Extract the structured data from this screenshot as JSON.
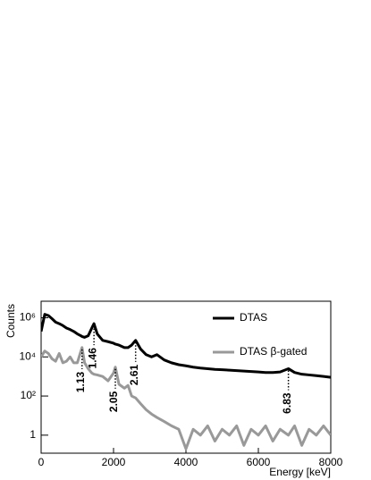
{
  "chart_data": {
    "type": "line",
    "xlabel": "Energy [keV]",
    "ylabel": "Counts",
    "x": [
      0,
      100,
      200,
      300,
      400,
      500,
      600,
      700,
      800,
      900,
      1000,
      1100,
      1130,
      1200,
      1300,
      1400,
      1460,
      1550,
      1700,
      1850,
      2000,
      2050,
      2150,
      2300,
      2400,
      2500,
      2610,
      2750,
      2900,
      3050,
      3200,
      3400,
      3600,
      3800,
      4000,
      4200,
      4400,
      4600,
      4800,
      5000,
      5200,
      5400,
      5600,
      5800,
      6000,
      6200,
      6400,
      6600,
      6830,
      7000,
      7200,
      7400,
      7600,
      7800,
      8000
    ],
    "series": [
      {
        "name": "DTAS",
        "color": "#000000",
        "values": [
          200000,
          1500000,
          1300000,
          900000,
          600000,
          500000,
          400000,
          300000,
          250000,
          200000,
          150000,
          120000,
          110000,
          100000,
          120000,
          300000,
          500000,
          150000,
          70000,
          60000,
          50000,
          45000,
          40000,
          30000,
          30000,
          40000,
          70000,
          25000,
          13000,
          10000,
          13000,
          7000,
          5000,
          4000,
          3500,
          3000,
          2700,
          2500,
          2300,
          2200,
          2100,
          2000,
          1900,
          1800,
          1700,
          1600,
          1600,
          1700,
          2500,
          1600,
          1300,
          1200,
          1100,
          1000,
          900
        ]
      },
      {
        "name": "DTAS β-gated",
        "color": "#999999",
        "values": [
          10000,
          20000,
          15000,
          8000,
          6000,
          15000,
          5000,
          6000,
          10000,
          5000,
          5000,
          20000,
          30000,
          5000,
          2500,
          1500,
          1300,
          1200,
          1000,
          600,
          1500,
          3000,
          400,
          250,
          350,
          100,
          80,
          40,
          20,
          12,
          8,
          5,
          3,
          2,
          0.2,
          2,
          1,
          3,
          0.5,
          2,
          1,
          3,
          0.3,
          2,
          1,
          3,
          0.5,
          2,
          1,
          3,
          0.3,
          2,
          1,
          3,
          1
        ]
      }
    ],
    "annotations": [
      {
        "text": "1.13",
        "x": 1130
      },
      {
        "text": "1.46",
        "x": 1460
      },
      {
        "text": "2.05",
        "x": 2050
      },
      {
        "text": "2.61",
        "x": 2610
      },
      {
        "text": "6.83",
        "x": 6830
      }
    ],
    "xlim": [
      0,
      8000
    ],
    "xticks": [
      0,
      2000,
      4000,
      6000,
      8000
    ],
    "ylim": [
      0.12,
      7000000
    ],
    "log_y": true,
    "yticks": [
      1,
      {
        "value": 100,
        "label": "10²"
      },
      {
        "value": 10000,
        "label": "10⁴"
      },
      {
        "value": 1000000,
        "label": "10⁶"
      }
    ],
    "legend": "upper right"
  }
}
